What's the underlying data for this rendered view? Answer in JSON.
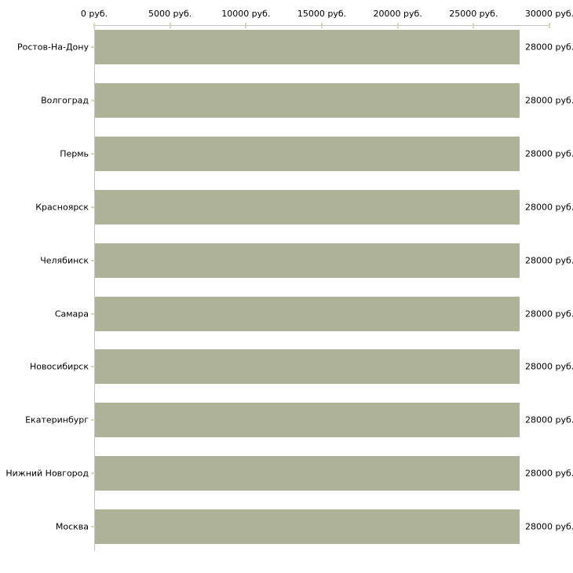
{
  "chart_data": {
    "type": "bar",
    "orientation": "horizontal",
    "title": "",
    "xlabel": "",
    "ylabel": "",
    "x_axis": {
      "position": "top",
      "min": 0,
      "max": 30000,
      "tick_step": 5000,
      "tick_labels": [
        "0 руб.",
        "5000 руб.",
        "10000 руб.",
        "15000 руб.",
        "20000 руб.",
        "25000 руб.",
        "30000 руб."
      ]
    },
    "categories": [
      "Ростов-На-Дону",
      "Волгоград",
      "Пермь",
      "Красноярск",
      "Челябинск",
      "Самара",
      "Новосибирск",
      "Екатеринбург",
      "Нижний Новгород",
      "Москва"
    ],
    "values": [
      28000,
      28000,
      28000,
      28000,
      28000,
      28000,
      28000,
      28000,
      28000,
      28000
    ],
    "value_labels": [
      "28000 руб.",
      "28000 руб.",
      "28000 руб.",
      "28000 руб.",
      "28000 руб.",
      "28000 руб.",
      "28000 руб.",
      "28000 руб.",
      "28000 руб.",
      "28000 руб."
    ],
    "unit": "руб.",
    "grid": false,
    "legend": null,
    "colors": {
      "bar": "#adb299",
      "axis_line": "#c4c4c4",
      "tick": "#d9d6b8",
      "text": "#000000",
      "background": "#ffffff"
    }
  }
}
